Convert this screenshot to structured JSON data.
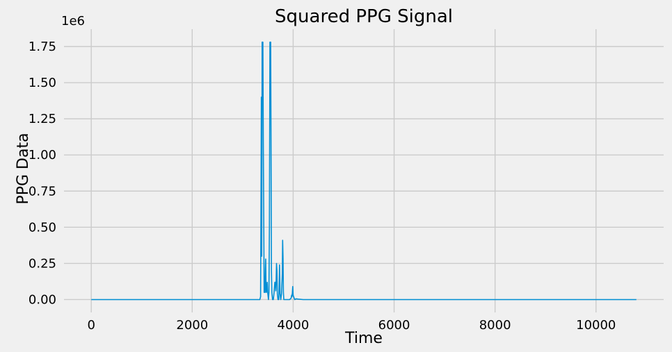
{
  "chart_data": {
    "type": "line",
    "title": "Squared PPG Signal",
    "xlabel": "Time",
    "ylabel": "PPG Data",
    "y_offset_label": "1e6",
    "xlim": [
      -540,
      11340
    ],
    "ylim": [
      -0.089,
      1.87
    ],
    "y_scale_note": "values in units of 1e6",
    "grid": true,
    "line_color": "#008fd5",
    "background_color": "#f0f0f0",
    "x_ticks": [
      0,
      2000,
      4000,
      6000,
      8000,
      10000
    ],
    "x_tick_labels": [
      "0",
      "2000",
      "4000",
      "6000",
      "8000",
      "10000"
    ],
    "y_ticks": [
      0,
      0.25,
      0.5,
      0.75,
      1.0,
      1.25,
      1.5,
      1.75
    ],
    "y_tick_labels": [
      "0.00",
      "0.25",
      "0.50",
      "0.75",
      "1.00",
      "1.25",
      "1.50",
      "1.75"
    ],
    "series": [
      {
        "x": [
          0,
          1000,
          2000,
          3000,
          3300,
          3340,
          3355,
          3362,
          3370,
          3377,
          3385,
          3392,
          3400,
          3408,
          3425,
          3440,
          3448,
          3455,
          3463,
          3470,
          3478,
          3487,
          3495,
          3510,
          3520,
          3530,
          3540,
          3548,
          3555,
          3562,
          3570,
          3578,
          3592,
          3607,
          3622,
          3637,
          3648,
          3655,
          3662,
          3670,
          3678,
          3687,
          3700,
          3715,
          3722,
          3730,
          3740,
          3755,
          3770,
          3785,
          3792,
          3800,
          3807,
          3815,
          3822,
          3830,
          3840,
          3860,
          3890,
          3930,
          3960,
          3970,
          3977,
          3985,
          3992,
          4000,
          4010,
          4030,
          4060,
          4100,
          4200,
          4500,
          5000,
          6000,
          7000,
          8000,
          9000,
          10000,
          10800
        ],
        "y": [
          0,
          0,
          0,
          0,
          0,
          0,
          0.02,
          0.6,
          1.4,
          0.3,
          1.78,
          1.78,
          1.78,
          1.1,
          0.05,
          0.05,
          0.2,
          0.28,
          0.05,
          0.05,
          0.08,
          0.12,
          0.05,
          0,
          0.05,
          0.5,
          1.78,
          1.78,
          1.78,
          1.1,
          0.2,
          0.05,
          0,
          0,
          0.05,
          0.12,
          0.12,
          0.06,
          0.12,
          0.25,
          0.2,
          0.04,
          0,
          0,
          0.1,
          0.24,
          0.04,
          0,
          0.04,
          0.18,
          0.41,
          0.28,
          0.05,
          0,
          0,
          0,
          0,
          0,
          0,
          0,
          0.01,
          0.03,
          0.02,
          0.05,
          0.09,
          0.03,
          0.02,
          0,
          0.005,
          0.003,
          0,
          0,
          0,
          0,
          0,
          0,
          0,
          0,
          0
        ]
      }
    ]
  }
}
